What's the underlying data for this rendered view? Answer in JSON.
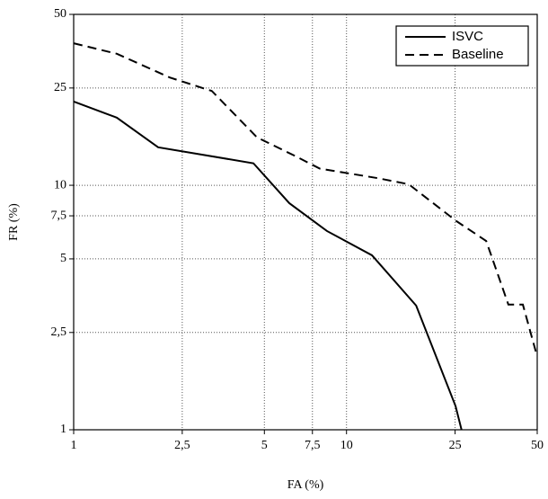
{
  "chart_data": {
    "type": "line",
    "x_label": "FA (%)",
    "y_label": "FR (%)",
    "xscale": "log",
    "yscale": "log",
    "grid": true,
    "legend": "top-right",
    "xlim": [
      1,
      50
    ],
    "ylim": [
      1,
      50
    ],
    "xticks": [
      1,
      {
        "value": 2.5,
        "label": "2,5"
      },
      5,
      {
        "value": 7.5,
        "label": "7,5"
      },
      10,
      25,
      50
    ],
    "yticks": [
      1,
      {
        "value": 2.5,
        "label": "2,5"
      },
      5,
      {
        "value": 7.5,
        "label": "7,5"
      },
      10,
      25,
      50
    ],
    "series": [
      {
        "name": "ISVC",
        "color": "#000000",
        "line_style": "solid",
        "x": [
          1,
          1.44,
          2.04,
          4.56,
          6.17,
          8.48,
          12.4,
          18.0,
          25.1,
          26.4
        ],
        "values": [
          22.0,
          18.9,
          14.3,
          12.3,
          8.45,
          6.5,
          5.17,
          3.22,
          1.25,
          1.0
        ]
      },
      {
        "name": "Baseline",
        "color": "#000000",
        "line_style": "dashed",
        "x": [
          1,
          1.44,
          2.25,
          3.21,
          4.7,
          6.46,
          7.98,
          12.97,
          16.9,
          25.3,
          32.5,
          39.2,
          44.3,
          50
        ],
        "values": [
          38.1,
          34.5,
          27.6,
          24.3,
          15.7,
          13.2,
          11.7,
          10.7,
          10.1,
          7.13,
          5.92,
          3.25,
          3.25,
          1.99
        ]
      }
    ]
  }
}
